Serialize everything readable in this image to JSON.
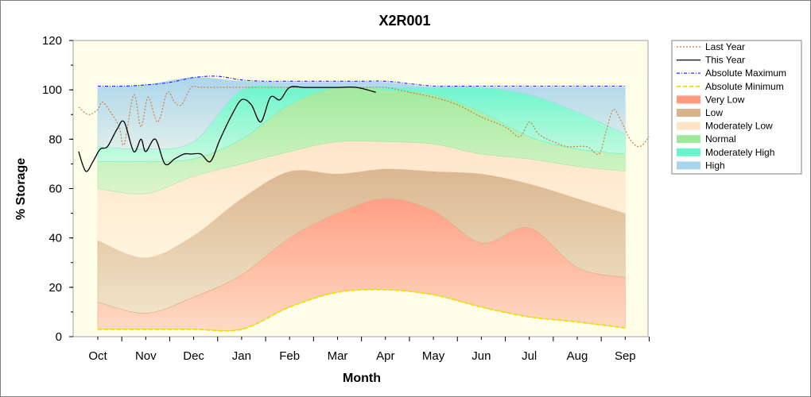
{
  "chart_data": {
    "type": "area",
    "title": "X2R001",
    "xlabel": "Month",
    "ylabel": "% Storage",
    "ylim": [
      0,
      120
    ],
    "yticks": [
      0,
      20,
      40,
      60,
      80,
      100,
      120
    ],
    "categories": [
      "Oct",
      "Nov",
      "Dec",
      "Jan",
      "Feb",
      "Mar",
      "Apr",
      "May",
      "Jun",
      "Jul",
      "Aug",
      "Sep"
    ],
    "grid": false,
    "legend_position": "right",
    "bands": [
      {
        "name": "Very Low",
        "color": "#ff9a80",
        "lower": [
          3,
          3,
          3,
          3,
          12,
          18,
          19,
          17,
          12,
          8,
          6,
          3.5
        ],
        "upper": [
          14,
          9.5,
          16,
          25,
          40,
          50,
          56,
          51,
          38,
          44,
          28,
          24
        ]
      },
      {
        "name": "Low",
        "color": "#d9b38c",
        "lower": [
          14,
          9.5,
          16,
          25,
          40,
          50,
          56,
          51,
          38,
          44,
          28,
          24
        ],
        "upper": [
          39,
          32,
          41,
          56,
          67,
          66,
          68,
          67,
          66,
          62,
          56,
          50
        ]
      },
      {
        "name": "Moderately Low",
        "color": "#ffe4c8",
        "lower": [
          39,
          32,
          41,
          56,
          67,
          66,
          68,
          67,
          66,
          62,
          56,
          50
        ],
        "upper": [
          60,
          58,
          65,
          70,
          75,
          79,
          79,
          78,
          74,
          72,
          69,
          67
        ]
      },
      {
        "name": "Normal",
        "color": "#9de89a",
        "lower": [
          60,
          58,
          65,
          70,
          75,
          79,
          79,
          78,
          74,
          72,
          69,
          67
        ],
        "upper": [
          71,
          71,
          72,
          80,
          94,
          101,
          100,
          98,
          91,
          81,
          76,
          74
        ]
      },
      {
        "name": "Moderately High",
        "color": "#66f5cc",
        "lower": [
          71,
          71,
          72,
          80,
          94,
          101,
          100,
          98,
          91,
          81,
          76,
          74
        ],
        "upper": [
          77,
          76,
          79,
          100,
          101,
          101,
          101,
          101,
          101,
          98,
          91,
          82
        ]
      },
      {
        "name": "High",
        "color": "#a8d4ec",
        "lower": [
          77,
          76,
          79,
          100,
          101,
          101,
          101,
          101,
          101,
          98,
          91,
          82
        ],
        "upper": [
          101,
          102,
          105,
          103.5,
          103,
          103,
          103,
          101,
          101,
          101,
          101,
          101
        ]
      }
    ],
    "series": [
      {
        "name": "Last Year",
        "color": "#c8783c",
        "style": "dotted",
        "x": [
          -0.4,
          -0.2,
          0.0,
          0.1,
          0.3,
          0.45,
          0.55,
          0.75,
          0.9,
          1.05,
          1.25,
          1.45,
          1.6,
          1.75,
          1.95,
          2.15,
          2.4,
          2.6,
          2.75,
          3.0,
          3.5,
          4.0,
          4.5,
          5.0,
          5.5,
          6.0,
          6.5,
          7.0,
          7.5,
          8.0,
          8.5,
          8.8,
          9.0,
          9.2,
          9.5,
          9.8,
          10.2,
          10.45,
          10.6,
          10.75,
          10.9,
          11.1,
          11.3,
          11.5
        ],
        "y": [
          93,
          90,
          92,
          95,
          90,
          85,
          78,
          98,
          85,
          97,
          87,
          99,
          95,
          94,
          101,
          101,
          101,
          101,
          101,
          101,
          101,
          101,
          101,
          101,
          101,
          101,
          99,
          97,
          94,
          89,
          85,
          81,
          87,
          82,
          79,
          77,
          77,
          74,
          83,
          92,
          88,
          80,
          77,
          81
        ]
      },
      {
        "name": "This Year",
        "color": "#000000",
        "style": "solid",
        "x": [
          -0.4,
          -0.25,
          -0.1,
          0.05,
          0.2,
          0.4,
          0.55,
          0.75,
          0.9,
          1.0,
          1.2,
          1.4,
          1.6,
          1.8,
          1.95,
          2.15,
          2.35,
          2.55,
          2.8,
          3.0,
          3.2,
          3.4,
          3.6,
          3.8,
          4.0,
          4.3,
          4.6,
          5.0,
          5.4,
          5.8
        ],
        "y": [
          75,
          67,
          71,
          76,
          77,
          84,
          87,
          75,
          80,
          75,
          80,
          70,
          72,
          74,
          74,
          74,
          71,
          80,
          90,
          96,
          94,
          87,
          97,
          96,
          101,
          101,
          101,
          101,
          101,
          99
        ]
      },
      {
        "name": "Absolute Maximum",
        "color": "#1a1aff",
        "style": "dashdot",
        "x": [
          0,
          0.5,
          1,
          1.5,
          2,
          2.5,
          3,
          3.5,
          4,
          4.5,
          5,
          5.5,
          6,
          6.5,
          7,
          7.5,
          8,
          8.5,
          9,
          9.5,
          10,
          10.5,
          11
        ],
        "y": [
          101.5,
          101.5,
          102,
          103,
          105,
          105.5,
          104,
          103.5,
          103.5,
          103.5,
          103.5,
          103.5,
          103.5,
          102.5,
          101.5,
          101.5,
          101.5,
          101.5,
          101.5,
          101.5,
          101.5,
          101.5,
          101.5
        ]
      },
      {
        "name": "Absolute Minimum",
        "color": "#e6e600",
        "style": "dashed",
        "x": [
          0,
          1,
          2,
          3,
          4,
          5,
          6,
          7,
          8,
          9,
          10,
          11
        ],
        "y": [
          3,
          3,
          3,
          3,
          12,
          18,
          19,
          17,
          12,
          8,
          6,
          3.5
        ]
      }
    ],
    "legend": [
      "Last Year",
      "This Year",
      "Absolute Maximum",
      "Absolute Minimum",
      "Very Low",
      "Low",
      "Moderately Low",
      "Normal",
      "Moderately High",
      "High"
    ]
  }
}
